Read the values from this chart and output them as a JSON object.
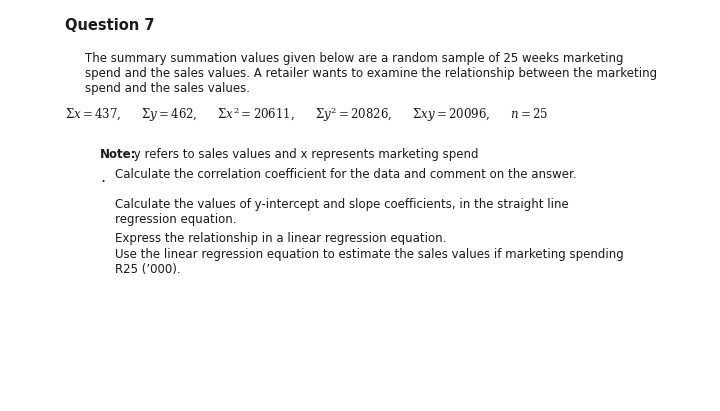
{
  "background_color": "#ffffff",
  "title": "Question 7",
  "body_color": "#1a1a1a",
  "title_fontsize": 10.5,
  "body_fontsize": 8.5,
  "para1": "The summary summation values given below are a random sample of 25 weeks marketing",
  "para2": "spend and the sales values. A retailer wants to examine the relationship between the marketing",
  "para3": "spend and the sales values.",
  "note_bold": "Note:",
  "note_rest": " y refers to sales values and x represents marketing spend",
  "bullet1": "Calculate the correlation coefficient for the data and comment on the answer.",
  "bullet2_line1": "Calculate the values of y-intercept and slope coefficients, in the straight line",
  "bullet2_line2": "regression equation.",
  "bullet3": "Express the relationship in a linear regression equation.",
  "bullet4_line1": "Use the linear regression equation to estimate the sales values if marketing spending",
  "bullet4_line2": "R25 (’000)."
}
